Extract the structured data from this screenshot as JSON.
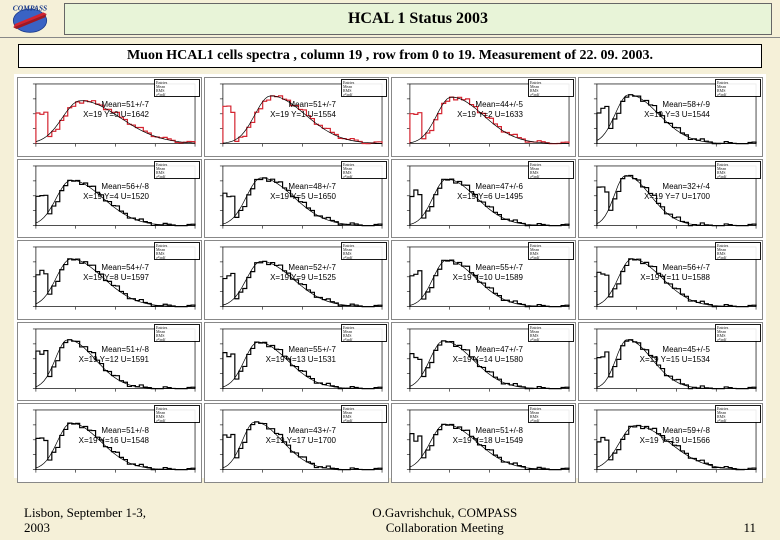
{
  "header": {
    "title": "HCAL 1 Status 2003",
    "logo_text": "COMPASS"
  },
  "subtitle": "Muon HCAL1 cells  spectra , column 19 , row from 0 to 19.   Measurement of 22. 09. 2003.",
  "chart_common": {
    "xlim": [
      0,
      200
    ],
    "ylim": [
      0,
      1
    ],
    "bg": "#ffffff",
    "axis_color": "#000000",
    "curve_width": 1.2,
    "red": "#d4232f",
    "black": "#000000",
    "anno_fontsize": 8,
    "statbox_lines": [
      "Entries",
      "Mean",
      "RMS",
      "χ²/ndf"
    ]
  },
  "cells": [
    {
      "mean": "51+/-7",
      "xyu": "X=19 Y=0 U=1642",
      "color": "red",
      "peak_x": 0.28,
      "peak_h": 0.72,
      "width": 0.16
    },
    {
      "mean": "51+/-7",
      "xyu": "X=19 Y=1 U=1554",
      "color": "red",
      "peak_x": 0.3,
      "peak_h": 0.8,
      "width": 0.14
    },
    {
      "mean": "44+/-5",
      "xyu": "X=19 Y=2 U=1633",
      "color": "red",
      "peak_x": 0.26,
      "peak_h": 0.78,
      "width": 0.13
    },
    {
      "mean": "58+/-9",
      "xyu": "X=19 Y=3 U=1544",
      "color": "black",
      "peak_x": 0.2,
      "peak_h": 0.82,
      "width": 0.12
    },
    {
      "mean": "56+/-8",
      "xyu": "X=19 Y=4 U=1520",
      "color": "black",
      "peak_x": 0.22,
      "peak_h": 0.76,
      "width": 0.13
    },
    {
      "mean": "48+/-7",
      "xyu": "X=19 Y=5 U=1650",
      "color": "black",
      "peak_x": 0.24,
      "peak_h": 0.8,
      "width": 0.13
    },
    {
      "mean": "47+/-6",
      "xyu": "X=19 Y=6 U=1495",
      "color": "black",
      "peak_x": 0.23,
      "peak_h": 0.78,
      "width": 0.12
    },
    {
      "mean": "32+/-4",
      "xyu": "X=19 Y=7 U=1700",
      "color": "black",
      "peak_x": 0.18,
      "peak_h": 0.84,
      "width": 0.1
    },
    {
      "mean": "54+/-7",
      "xyu": "X=19 Y=8 U=1597",
      "color": "black",
      "peak_x": 0.22,
      "peak_h": 0.8,
      "width": 0.13
    },
    {
      "mean": "52+/-7",
      "xyu": "X=19 Y=9 U=1525",
      "color": "black",
      "peak_x": 0.24,
      "peak_h": 0.76,
      "width": 0.13
    },
    {
      "mean": "55+/-7",
      "xyu": "X=19 Y=10 U=1589",
      "color": "black",
      "peak_x": 0.23,
      "peak_h": 0.78,
      "width": 0.12
    },
    {
      "mean": "56+/-7",
      "xyu": "X=19 Y=11 U=1588",
      "color": "black",
      "peak_x": 0.22,
      "peak_h": 0.8,
      "width": 0.12
    },
    {
      "mean": "51+/-8",
      "xyu": "X=19 Y=12 U=1591",
      "color": "black",
      "peak_x": 0.2,
      "peak_h": 0.82,
      "width": 0.11
    },
    {
      "mean": "55+/-7",
      "xyu": "X=19 Y=13 U=1531",
      "color": "black",
      "peak_x": 0.22,
      "peak_h": 0.78,
      "width": 0.12
    },
    {
      "mean": "47+/-7",
      "xyu": "X=19 Y=14 U=1580",
      "color": "black",
      "peak_x": 0.21,
      "peak_h": 0.8,
      "width": 0.12
    },
    {
      "mean": "45+/-5",
      "xyu": "X=19 Y=15 U=1534",
      "color": "black",
      "peak_x": 0.19,
      "peak_h": 0.82,
      "width": 0.1
    },
    {
      "mean": "51+/-8",
      "xyu": "X=19 Y=16 U=1548",
      "color": "black",
      "peak_x": 0.22,
      "peak_h": 0.78,
      "width": 0.12
    },
    {
      "mean": "43+/-7",
      "xyu": "X=19 Y=17 U=1700",
      "color": "black",
      "peak_x": 0.2,
      "peak_h": 0.8,
      "width": 0.11
    },
    {
      "mean": "51+/-8",
      "xyu": "X=19 Y=18 U=1549",
      "color": "black",
      "peak_x": 0.22,
      "peak_h": 0.76,
      "width": 0.13
    },
    {
      "mean": "59+/-8",
      "xyu": "X=19 Y=19 U=1566",
      "color": "black",
      "peak_x": 0.24,
      "peak_h": 0.74,
      "width": 0.14
    }
  ],
  "footer": {
    "left_line1": "Lisbon, September 1-3,",
    "left_line2": "2003",
    "center_line1": "O.Gavrishchuk,     COMPASS",
    "center_line2": "Collaboration Meeting",
    "page": "11"
  }
}
